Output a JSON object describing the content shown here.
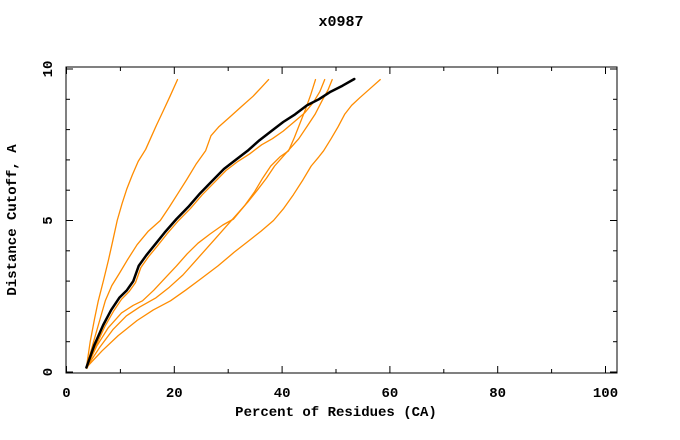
{
  "chart_data": {
    "type": "line",
    "title": "x0987",
    "xlabel": "Percent of Residues (CA)",
    "ylabel": "Distance Cutoff, A",
    "xlim": [
      0,
      102
    ],
    "ylim": [
      0,
      10.07
    ],
    "grid": false,
    "legend": "none",
    "xticks": {
      "major": [
        0,
        20,
        40,
        60,
        80,
        100
      ],
      "minor": [
        10,
        30,
        50,
        70,
        90
      ]
    },
    "yticks": {
      "major": [
        0,
        5,
        10
      ],
      "minor": [
        1,
        2,
        3,
        4,
        6,
        7,
        8,
        9
      ]
    },
    "colors": {
      "frame": "#000000",
      "primary_curve": "#000000",
      "secondary_curve": "#ff8c00",
      "background": "#ffffff"
    },
    "series": [
      {
        "name": "orange-curve-1",
        "color": "#ff8c00",
        "width": 1.3,
        "points": [
          [
            3.7,
            0.15
          ],
          [
            4.4,
            1.0
          ],
          [
            5.2,
            1.75
          ],
          [
            5.9,
            2.35
          ],
          [
            6.9,
            3.05
          ],
          [
            7.8,
            3.7
          ],
          [
            8.6,
            4.35
          ],
          [
            9.4,
            5.0
          ],
          [
            10.3,
            5.55
          ],
          [
            11.2,
            6.05
          ],
          [
            12.2,
            6.5
          ],
          [
            13.3,
            6.95
          ],
          [
            14.7,
            7.35
          ],
          [
            15.7,
            7.75
          ],
          [
            16.7,
            8.15
          ],
          [
            17.9,
            8.6
          ],
          [
            19.2,
            9.1
          ],
          [
            20.6,
            9.65
          ]
        ]
      },
      {
        "name": "orange-curve-2",
        "color": "#ff8c00",
        "width": 1.3,
        "points": [
          [
            3.7,
            0.15
          ],
          [
            5.1,
            1.05
          ],
          [
            6.3,
            1.8
          ],
          [
            7.2,
            2.35
          ],
          [
            8.4,
            2.85
          ],
          [
            9.8,
            3.25
          ],
          [
            11.3,
            3.7
          ],
          [
            13.1,
            4.2
          ],
          [
            15.2,
            4.65
          ],
          [
            17.4,
            5.0
          ],
          [
            19.1,
            5.45
          ],
          [
            20.7,
            5.9
          ],
          [
            22.3,
            6.35
          ],
          [
            24.0,
            6.85
          ],
          [
            25.8,
            7.3
          ],
          [
            26.8,
            7.8
          ],
          [
            28.3,
            8.1
          ],
          [
            30.2,
            8.4
          ],
          [
            32.4,
            8.75
          ],
          [
            34.6,
            9.1
          ],
          [
            36.2,
            9.4
          ],
          [
            37.5,
            9.65
          ]
        ]
      },
      {
        "name": "orange-curve-3",
        "color": "#ff8c00",
        "width": 1.3,
        "points": [
          [
            3.7,
            0.15
          ],
          [
            5.6,
            0.85
          ],
          [
            7.7,
            1.45
          ],
          [
            10.2,
            1.95
          ],
          [
            12.4,
            2.2
          ],
          [
            14.1,
            2.35
          ],
          [
            16.2,
            2.7
          ],
          [
            18.3,
            3.1
          ],
          [
            20.4,
            3.5
          ],
          [
            22.4,
            3.9
          ],
          [
            24.4,
            4.25
          ],
          [
            26.6,
            4.55
          ],
          [
            29.0,
            4.85
          ],
          [
            31.0,
            5.05
          ],
          [
            33.1,
            5.5
          ],
          [
            34.9,
            5.95
          ],
          [
            36.4,
            6.4
          ],
          [
            37.9,
            6.8
          ],
          [
            39.6,
            7.1
          ],
          [
            41.2,
            7.3
          ],
          [
            42.3,
            7.75
          ],
          [
            43.3,
            8.2
          ],
          [
            44.3,
            8.65
          ],
          [
            45.3,
            9.15
          ],
          [
            46.2,
            9.65
          ]
        ]
      },
      {
        "name": "orange-curve-4",
        "color": "#ff8c00",
        "width": 1.3,
        "points": [
          [
            3.8,
            0.12
          ],
          [
            5.5,
            0.88
          ],
          [
            7.1,
            1.5
          ],
          [
            8.7,
            2.0
          ],
          [
            10.2,
            2.4
          ],
          [
            11.6,
            2.65
          ],
          [
            12.8,
            2.95
          ],
          [
            13.8,
            3.45
          ],
          [
            15.2,
            3.8
          ],
          [
            16.8,
            4.15
          ],
          [
            18.6,
            4.55
          ],
          [
            20.8,
            5.0
          ],
          [
            23.0,
            5.4
          ],
          [
            25.2,
            5.85
          ],
          [
            27.4,
            6.25
          ],
          [
            29.6,
            6.65
          ],
          [
            31.8,
            6.95
          ],
          [
            34.0,
            7.2
          ],
          [
            36.2,
            7.5
          ],
          [
            38.2,
            7.7
          ],
          [
            40.2,
            7.95
          ],
          [
            42.2,
            8.25
          ],
          [
            44.2,
            8.55
          ],
          [
            45.8,
            8.9
          ],
          [
            47.0,
            9.25
          ],
          [
            47.9,
            9.65
          ]
        ]
      },
      {
        "name": "orange-curve-5",
        "color": "#ff8c00",
        "width": 1.3,
        "points": [
          [
            3.7,
            0.15
          ],
          [
            6.1,
            0.8
          ],
          [
            8.6,
            1.4
          ],
          [
            11.1,
            1.85
          ],
          [
            13.6,
            2.15
          ],
          [
            16.6,
            2.45
          ],
          [
            19.1,
            2.8
          ],
          [
            21.6,
            3.2
          ],
          [
            23.6,
            3.6
          ],
          [
            25.6,
            4.0
          ],
          [
            27.6,
            4.4
          ],
          [
            29.6,
            4.8
          ],
          [
            31.6,
            5.2
          ],
          [
            33.6,
            5.6
          ],
          [
            35.4,
            6.0
          ],
          [
            37.1,
            6.4
          ],
          [
            38.6,
            6.8
          ],
          [
            40.1,
            7.1
          ],
          [
            41.6,
            7.4
          ],
          [
            43.1,
            7.7
          ],
          [
            44.6,
            8.1
          ],
          [
            46.1,
            8.5
          ],
          [
            47.4,
            8.95
          ],
          [
            48.5,
            9.3
          ],
          [
            49.3,
            9.65
          ]
        ]
      },
      {
        "name": "orange-curve-6",
        "color": "#ff8c00",
        "width": 1.3,
        "points": [
          [
            3.7,
            0.15
          ],
          [
            6.6,
            0.7
          ],
          [
            9.6,
            1.2
          ],
          [
            13.1,
            1.7
          ],
          [
            16.1,
            2.05
          ],
          [
            19.3,
            2.35
          ],
          [
            22.1,
            2.7
          ],
          [
            25.1,
            3.1
          ],
          [
            28.1,
            3.5
          ],
          [
            31.1,
            3.95
          ],
          [
            33.6,
            4.3
          ],
          [
            36.1,
            4.65
          ],
          [
            38.4,
            5.0
          ],
          [
            40.3,
            5.4
          ],
          [
            42.1,
            5.85
          ],
          [
            43.9,
            6.35
          ],
          [
            45.4,
            6.8
          ],
          [
            46.8,
            7.1
          ],
          [
            47.7,
            7.3
          ],
          [
            49.1,
            7.7
          ],
          [
            50.4,
            8.1
          ],
          [
            51.6,
            8.5
          ],
          [
            52.9,
            8.8
          ],
          [
            54.4,
            9.05
          ],
          [
            56.3,
            9.35
          ],
          [
            58.2,
            9.65
          ]
        ]
      },
      {
        "name": "black-curve",
        "color": "#000000",
        "width": 2.5,
        "points": [
          [
            3.7,
            0.15
          ],
          [
            5.2,
            0.9
          ],
          [
            6.8,
            1.55
          ],
          [
            8.3,
            2.05
          ],
          [
            9.8,
            2.45
          ],
          [
            11.2,
            2.7
          ],
          [
            12.4,
            3.0
          ],
          [
            13.4,
            3.5
          ],
          [
            14.8,
            3.85
          ],
          [
            16.4,
            4.2
          ],
          [
            18.2,
            4.6
          ],
          [
            20.4,
            5.05
          ],
          [
            22.6,
            5.45
          ],
          [
            24.8,
            5.9
          ],
          [
            27.0,
            6.3
          ],
          [
            29.2,
            6.7
          ],
          [
            31.4,
            7.0
          ],
          [
            33.6,
            7.3
          ],
          [
            35.8,
            7.65
          ],
          [
            38.0,
            7.95
          ],
          [
            40.2,
            8.25
          ],
          [
            42.4,
            8.5
          ],
          [
            44.6,
            8.8
          ],
          [
            46.8,
            9.0
          ],
          [
            49.0,
            9.25
          ],
          [
            51.2,
            9.45
          ],
          [
            53.4,
            9.67
          ]
        ]
      }
    ]
  }
}
